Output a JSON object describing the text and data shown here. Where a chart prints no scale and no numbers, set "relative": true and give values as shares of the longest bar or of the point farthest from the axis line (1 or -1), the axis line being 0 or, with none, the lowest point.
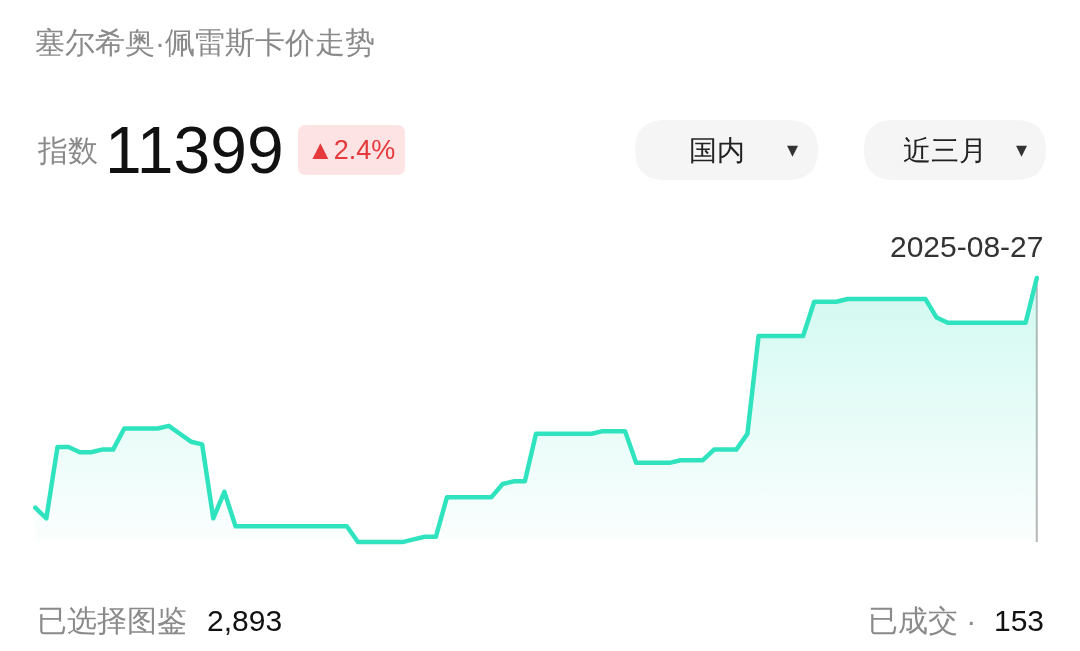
{
  "chart_data": {
    "type": "area",
    "title": "塞尔希奥·佩雷斯卡价走势",
    "relative": true,
    "color": "#2fe3bf",
    "categories": [
      null,
      null,
      null,
      null,
      null,
      null,
      null,
      null,
      null,
      null,
      null,
      null,
      null,
      null,
      null,
      null,
      null,
      null,
      null,
      null,
      null,
      null,
      null,
      null,
      null,
      null,
      null,
      null,
      null,
      null,
      null,
      null,
      null,
      null,
      null,
      null,
      null,
      null,
      null,
      null,
      null,
      null,
      null,
      null,
      null,
      null,
      null,
      null,
      null,
      null,
      null,
      null,
      null,
      null,
      null,
      null,
      null,
      null,
      null,
      null,
      null,
      null,
      null,
      null,
      null,
      null,
      null,
      null,
      null,
      null,
      null,
      null,
      null,
      null,
      null,
      null,
      null,
      null,
      null,
      null,
      null,
      null,
      null,
      null,
      null,
      null,
      null,
      null,
      null,
      null,
      null
    ],
    "values": [
      0.13,
      0.09,
      0.36,
      0.36,
      0.34,
      0.34,
      0.35,
      0.35,
      0.43,
      0.43,
      0.43,
      0.43,
      0.44,
      0.41,
      0.38,
      0.37,
      0.09,
      0.19,
      0.06,
      0.06,
      0.06,
      0.06,
      0.06,
      0.06,
      0.06,
      0.06,
      0.06,
      0.06,
      0.06,
      0,
      0,
      0,
      0,
      0,
      0.01,
      0.02,
      0.02,
      0.17,
      0.17,
      0.17,
      0.17,
      0.17,
      0.22,
      0.23,
      0.23,
      0.41,
      0.41,
      0.41,
      0.41,
      0.41,
      0.41,
      0.42,
      0.42,
      0.42,
      0.3,
      0.3,
      0.3,
      0.3,
      0.31,
      0.31,
      0.31,
      0.35,
      0.35,
      0.35,
      0.41,
      0.78,
      0.78,
      0.78,
      0.78,
      0.78,
      0.91,
      0.91,
      0.91,
      0.92,
      0.92,
      0.92,
      0.92,
      0.92,
      0.92,
      0.92,
      0.92,
      0.85,
      0.83,
      0.83,
      0.83,
      0.83,
      0.83,
      0.83,
      0.83,
      0.83,
      1.0
    ],
    "annotations": [
      "指数",
      "11399",
      "▲2.4%",
      "国内",
      "▾",
      "近三月",
      "▾",
      "2025-08-27",
      "已选择图鉴",
      "2,893",
      "已成交 ·",
      "153"
    ]
  }
}
